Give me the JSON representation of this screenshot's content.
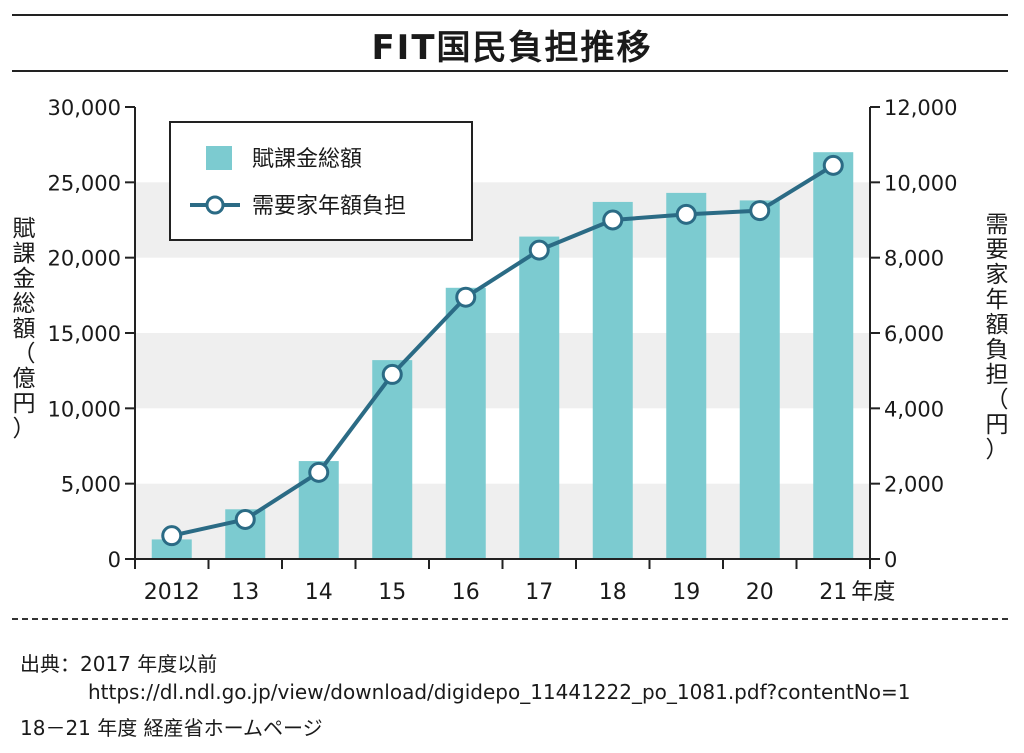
{
  "title": "FIT国民負担推移",
  "chart_data": {
    "type": "bar",
    "categories": [
      "2012",
      "13",
      "14",
      "15",
      "16",
      "17",
      "18",
      "19",
      "20",
      "21"
    ],
    "x_unit": "年度",
    "series": [
      {
        "name": "賦課金総額",
        "type": "bar",
        "axis": "left",
        "values": [
          1300,
          3300,
          6500,
          13200,
          18000,
          21400,
          23700,
          24300,
          23800,
          27000
        ]
      },
      {
        "name": "需要家年額負担",
        "type": "line",
        "axis": "right",
        "values": [
          620,
          1050,
          2300,
          4900,
          6950,
          8200,
          9000,
          9150,
          9250,
          10450
        ]
      }
    ],
    "y_left": {
      "label": "賦課金総額（億円）",
      "lim": [
        0,
        30000
      ],
      "ticks": [
        "0",
        "5,000",
        "10,000",
        "15,000",
        "20,000",
        "25,000",
        "30,000"
      ]
    },
    "y_right": {
      "label": "需要家年額負担（円）",
      "lim": [
        0,
        12000
      ],
      "ticks": [
        "0",
        "2,000",
        "4,000",
        "6,000",
        "8,000",
        "10,000",
        "12,000"
      ]
    },
    "legend_placement": "top-left",
    "grid": "alternating horizontal bands"
  },
  "colors": {
    "bar": "#7ccbd0",
    "line": "#2b6b85",
    "band": "#efefef",
    "axis": "#222222"
  },
  "source": {
    "label": "出典：2017 年度以前",
    "url": "https://dl.ndl.go.jp/view/download/digidepo_11441222_po_1081.pdf?contentNo=1",
    "note": "18－21 年度 経産省ホームページ"
  }
}
